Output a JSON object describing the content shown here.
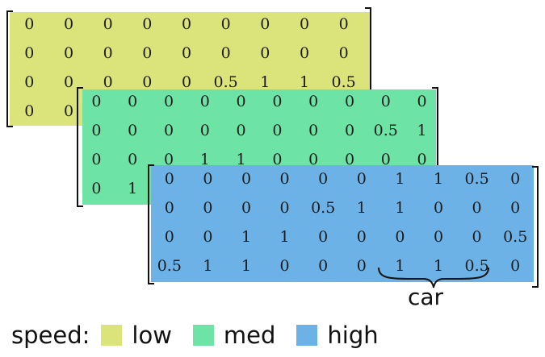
{
  "matrices": [
    {
      "level": "low",
      "color": "#dbe47a",
      "rows": [
        [
          "0",
          "0",
          "0",
          "0",
          "0",
          "0",
          "0",
          "0",
          "0"
        ],
        [
          "0",
          "0",
          "0",
          "0",
          "0",
          "0",
          "0",
          "0",
          "0"
        ],
        [
          "0",
          "0",
          "0",
          "0",
          "0",
          "0.5",
          "1",
          "1",
          "0.5"
        ],
        [
          "0",
          "0",
          "",
          "",
          "",
          "",
          "",
          "",
          ""
        ]
      ]
    },
    {
      "level": "med",
      "color": "#6ee3a6",
      "rows": [
        [
          "0",
          "0",
          "0",
          "0",
          "0",
          "0",
          "0",
          "0",
          "0",
          "0"
        ],
        [
          "0",
          "0",
          "0",
          "0",
          "0",
          "0",
          "0",
          "0",
          "0.5",
          "1"
        ],
        [
          "0",
          "0",
          "0",
          "1",
          "1",
          "0",
          "0",
          "0",
          "0",
          "0"
        ],
        [
          "0",
          "1",
          "",
          "",
          "",
          "",
          "",
          "",
          "",
          ""
        ]
      ]
    },
    {
      "level": "high",
      "color": "#6cb2e6",
      "rows": [
        [
          "0",
          "0",
          "0",
          "0",
          "0",
          "0",
          "1",
          "1",
          "0.5",
          "0"
        ],
        [
          "0",
          "0",
          "0",
          "0",
          "0.5",
          "1",
          "1",
          "0",
          "0",
          "0"
        ],
        [
          "0",
          "0",
          "1",
          "1",
          "0",
          "0",
          "0",
          "0",
          "0",
          "0.5"
        ],
        [
          "0.5",
          "1",
          "1",
          "0",
          "0",
          "0",
          "1",
          "1",
          "0.5",
          "0"
        ]
      ]
    }
  ],
  "annotation": {
    "label": "car"
  },
  "legend": {
    "title": "speed:",
    "items": [
      {
        "label": "low",
        "color": "#dbe47a"
      },
      {
        "label": "med",
        "color": "#6ee3a6"
      },
      {
        "label": "high",
        "color": "#6cb2e6"
      }
    ]
  }
}
